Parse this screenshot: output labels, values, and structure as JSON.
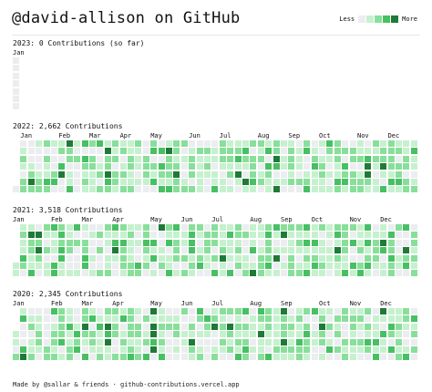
{
  "header": {
    "title": "@david-allison on GitHub",
    "legend_less": "Less",
    "legend_more": "More"
  },
  "levels": [
    "#ebedf0",
    "#c6f1ce",
    "#88df9a",
    "#47c063",
    "#1f7a37"
  ],
  "years": [
    {
      "label": "2023: 0 Contributions (so far)",
      "months": [
        {
          "label": "Jan",
          "week": 0
        }
      ],
      "first_week_start_day": 0,
      "counts": [
        0,
        0,
        0,
        0,
        0,
        0,
        0
      ]
    },
    {
      "label": "2022: 2,662 Contributions",
      "months": [
        {
          "label": "Jan",
          "week": 1
        },
        {
          "label": "Feb",
          "week": 6
        },
        {
          "label": "Mar",
          "week": 10
        },
        {
          "label": "Apr",
          "week": 14
        },
        {
          "label": "May",
          "week": 18
        },
        {
          "label": "Jun",
          "week": 23
        },
        {
          "label": "Jul",
          "week": 27
        },
        {
          "label": "Aug",
          "week": 32
        },
        {
          "label": "Sep",
          "week": 36
        },
        {
          "label": "Oct",
          "week": 40
        },
        {
          "label": "Nov",
          "week": 45
        },
        {
          "label": "Dec",
          "week": 49
        }
      ],
      "first_week_start_day": 6,
      "seed": 22,
      "weeks": 53
    },
    {
      "label": "2021: 3,518 Contributions",
      "months": [
        {
          "label": "Jan",
          "week": 0
        },
        {
          "label": "Feb",
          "week": 5
        },
        {
          "label": "Mar",
          "week": 9
        },
        {
          "label": "Apr",
          "week": 13
        },
        {
          "label": "May",
          "week": 18
        },
        {
          "label": "Jun",
          "week": 22
        },
        {
          "label": "Jul",
          "week": 26
        },
        {
          "label": "Aug",
          "week": 31
        },
        {
          "label": "Sep",
          "week": 35
        },
        {
          "label": "Oct",
          "week": 39
        },
        {
          "label": "Nov",
          "week": 44
        },
        {
          "label": "Dec",
          "week": 48
        }
      ],
      "first_week_start_day": 5,
      "seed": 21,
      "weeks": 53
    },
    {
      "label": "2020: 2,345 Contributions",
      "months": [
        {
          "label": "Jan",
          "week": 0
        },
        {
          "label": "Feb",
          "week": 5
        },
        {
          "label": "Mar",
          "week": 9
        },
        {
          "label": "Apr",
          "week": 13
        },
        {
          "label": "May",
          "week": 18
        },
        {
          "label": "Jun",
          "week": 22
        },
        {
          "label": "Jul",
          "week": 26
        },
        {
          "label": "Aug",
          "week": 31
        },
        {
          "label": "Sep",
          "week": 35
        },
        {
          "label": "Oct",
          "week": 40
        },
        {
          "label": "Nov",
          "week": 44
        },
        {
          "label": "Dec",
          "week": 48
        }
      ],
      "first_week_start_day": 3,
      "seed": 20,
      "weeks": 53
    }
  ],
  "footer": {
    "text": "Made by @sallar & friends · github-contributions.vercel.app"
  }
}
